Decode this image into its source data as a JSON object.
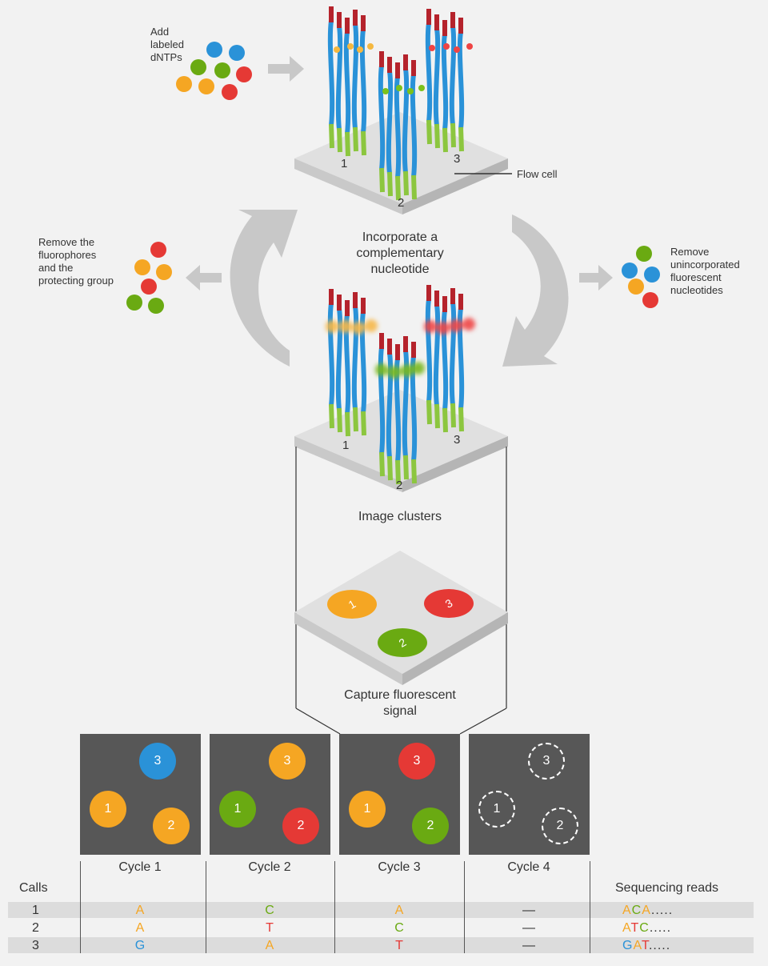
{
  "labels": {
    "add_dntps": [
      "Add",
      "labeled",
      "dNTPs"
    ],
    "flow_cell": "Flow cell",
    "incorporate": [
      "Incorporate a",
      "complementary",
      "nucleotide"
    ],
    "remove_fluor": [
      "Remove the",
      "fluorophores",
      "and the",
      "protecting group"
    ],
    "remove_unincorporated": [
      "Remove",
      "unincorporated",
      "fluorescent",
      "nucleotides"
    ],
    "image_clusters": "Image clusters",
    "capture": [
      "Capture fluorescent",
      "signal"
    ],
    "cluster_ids": [
      "1",
      "2",
      "3"
    ]
  },
  "colors": {
    "A": "#f5a623",
    "C": "#6aaa12",
    "G": "#2a92d8",
    "T": "#e53935",
    "strand": "#2a92d8",
    "adapter": "#8cc63f",
    "cap": "#b5232c",
    "arrow": "#c8c8c8"
  },
  "cycles": [
    {
      "label": "Cycle 1",
      "spots": [
        {
          "id": "3",
          "color": "#2a92d8"
        },
        {
          "id": "1",
          "color": "#f5a623"
        },
        {
          "id": "2",
          "color": "#f5a623"
        }
      ]
    },
    {
      "label": "Cycle 2",
      "spots": [
        {
          "id": "3",
          "color": "#f5a623"
        },
        {
          "id": "1",
          "color": "#6aaa12"
        },
        {
          "id": "2",
          "color": "#e53935"
        }
      ]
    },
    {
      "label": "Cycle 3",
      "spots": [
        {
          "id": "3",
          "color": "#e53935"
        },
        {
          "id": "1",
          "color": "#f5a623"
        },
        {
          "id": "2",
          "color": "#6aaa12"
        }
      ]
    },
    {
      "label": "Cycle 4",
      "spots": [
        {
          "id": "3",
          "color": "none"
        },
        {
          "id": "1",
          "color": "none"
        },
        {
          "id": "2",
          "color": "none"
        }
      ]
    }
  ],
  "table": {
    "calls_header": "Calls",
    "reads_header": "Sequencing reads",
    "rows": [
      {
        "id": "1",
        "calls": [
          "A",
          "C",
          "A",
          "—"
        ],
        "read": [
          "A",
          "C",
          "A"
        ],
        "dots": "....."
      },
      {
        "id": "2",
        "calls": [
          "A",
          "T",
          "C",
          "—"
        ],
        "read": [
          "A",
          "T",
          "C"
        ],
        "dots": "....."
      },
      {
        "id": "3",
        "calls": [
          "G",
          "A",
          "T",
          "—"
        ],
        "read": [
          "G",
          "A",
          "T"
        ],
        "dots": "....."
      }
    ]
  }
}
